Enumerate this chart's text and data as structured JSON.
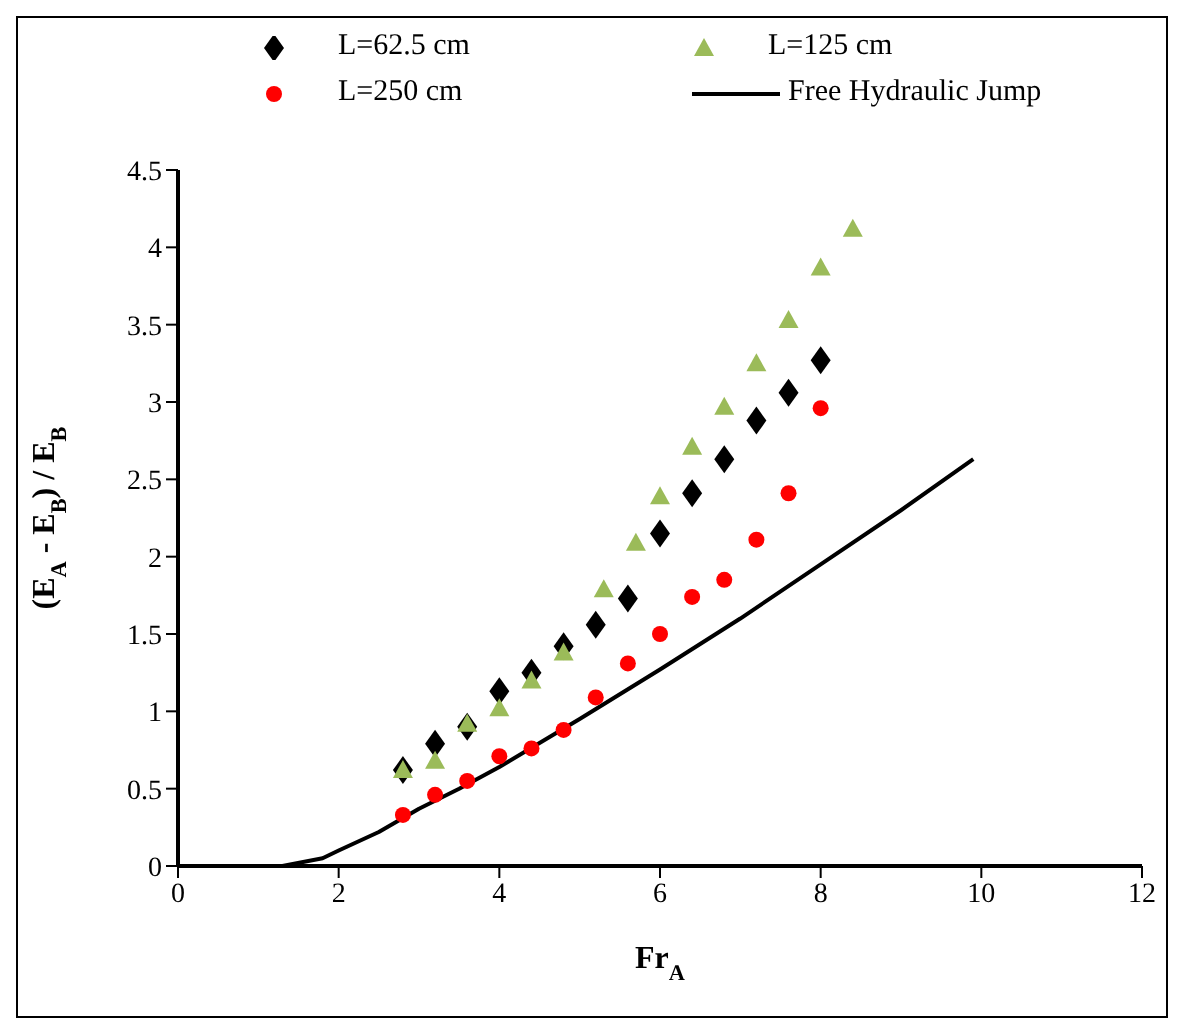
{
  "chart_data": {
    "type": "scatter",
    "xlabel": "Fr$_{A}$",
    "ylabel": "(E$_{A}$ - E$_{B}$) / E$_{B}$",
    "xlim": [
      0,
      12
    ],
    "xticks": [
      0,
      2,
      4,
      6,
      8,
      10,
      12
    ],
    "ylim": [
      0,
      4.5
    ],
    "yticks": [
      0,
      0.5,
      1,
      1.5,
      2,
      2.5,
      3,
      3.5,
      4,
      4.5
    ],
    "legend": "top",
    "series": [
      {
        "name": "L=62.5 cm",
        "color": "#000000",
        "marker": "diamond",
        "x": [
          2.8,
          3.2,
          3.6,
          4.0,
          4.4,
          4.8,
          5.2,
          5.6,
          6.0,
          6.4,
          6.8,
          7.2,
          7.6,
          8.0
        ],
        "values": [
          0.62,
          0.79,
          0.9,
          1.13,
          1.25,
          1.42,
          1.56,
          1.73,
          2.15,
          2.41,
          2.63,
          2.88,
          3.06,
          3.27
        ]
      },
      {
        "name": "L=125 cm",
        "color": "#9bbb59",
        "marker": "triangle",
        "x": [
          2.8,
          3.2,
          3.6,
          4.0,
          4.4,
          4.8,
          5.3,
          5.7,
          6.0,
          6.4,
          6.8,
          7.2,
          7.6,
          8.0,
          8.4
        ],
        "values": [
          0.62,
          0.68,
          0.92,
          1.02,
          1.2,
          1.38,
          1.79,
          2.09,
          2.39,
          2.71,
          2.97,
          3.25,
          3.53,
          3.87,
          4.12
        ]
      },
      {
        "name": "L=250 cm",
        "color": "#ff0000",
        "marker": "circle",
        "x": [
          2.8,
          3.2,
          3.6,
          4.0,
          4.4,
          4.8,
          5.2,
          5.6,
          6.0,
          6.4,
          6.8,
          7.2,
          7.6,
          8.0
        ],
        "values": [
          0.33,
          0.46,
          0.55,
          0.71,
          0.76,
          0.88,
          1.09,
          1.31,
          1.5,
          1.74,
          1.85,
          2.11,
          2.41,
          2.96
        ]
      },
      {
        "name": "Free Hydraulic Jump",
        "type": "line",
        "color": "#000000",
        "line_style": "solid",
        "x": [
          1.3,
          1.8,
          2,
          2.5,
          3,
          3.5,
          4,
          5,
          6,
          7,
          8,
          9,
          9.9
        ],
        "values": [
          0,
          0.05,
          0.1,
          0.22,
          0.37,
          0.5,
          0.64,
          0.95,
          1.27,
          1.6,
          1.95,
          2.3,
          2.63
        ]
      }
    ]
  }
}
